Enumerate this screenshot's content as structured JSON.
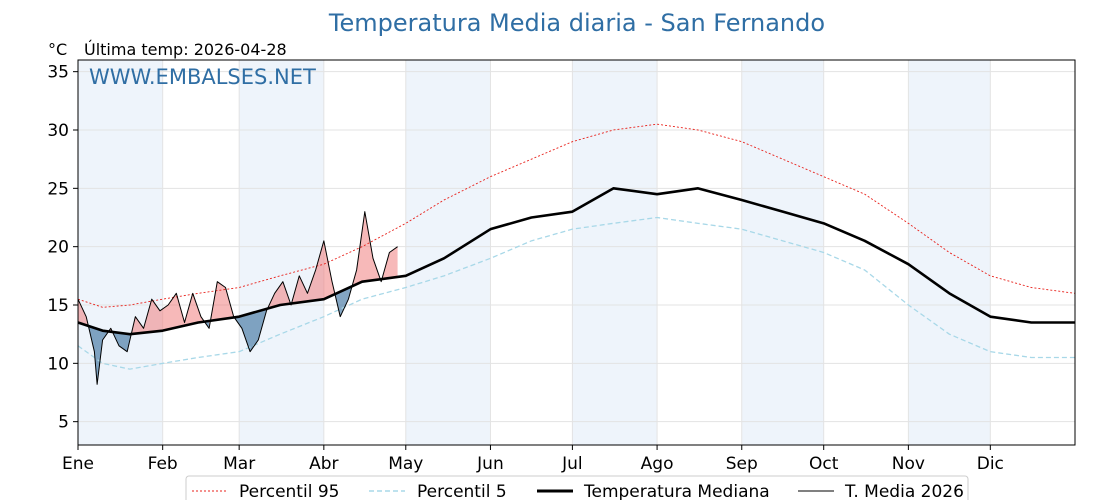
{
  "chart_data": {
    "type": "line",
    "title": "Temperatura Media diaria - San Fernando",
    "unit_label": "°C",
    "last_temp_label": "Última temp: 2026-04-28",
    "watermark": "WWW.EMBALSES.NET",
    "ylim": [
      3,
      36
    ],
    "y_ticks": [
      5,
      10,
      15,
      20,
      25,
      30,
      35
    ],
    "x_range_days": [
      1,
      366
    ],
    "months": [
      {
        "label": "Ene",
        "day": 1
      },
      {
        "label": "Feb",
        "day": 32
      },
      {
        "label": "Mar",
        "day": 60
      },
      {
        "label": "Abr",
        "day": 91
      },
      {
        "label": "May",
        "day": 121
      },
      {
        "label": "Jun",
        "day": 152
      },
      {
        "label": "Jul",
        "day": 182
      },
      {
        "label": "Ago",
        "day": 213
      },
      {
        "label": "Sep",
        "day": 244
      },
      {
        "label": "Oct",
        "day": 274
      },
      {
        "label": "Nov",
        "day": 305
      },
      {
        "label": "Dic",
        "day": 335
      }
    ],
    "grid": true,
    "legend_position": "bottom",
    "colors": {
      "p95": "#e8211b",
      "p5": "#a8d8e8",
      "median": "#000000",
      "current": "#000000",
      "above_fill": "#f08080",
      "below_fill": "#4f7fa8",
      "title": "#2f6ea4",
      "band_shade": "#eef4fb"
    },
    "series": [
      {
        "key": "p95",
        "name": "Percentil 95",
        "x": [
          1,
          10,
          20,
          32,
          45,
          60,
          75,
          91,
          105,
          121,
          135,
          152,
          167,
          182,
          197,
          213,
          228,
          244,
          259,
          274,
          289,
          305,
          320,
          335,
          350,
          366
        ],
        "y": [
          15.5,
          14.8,
          15.0,
          15.5,
          16.0,
          16.5,
          17.5,
          18.5,
          20.0,
          22.0,
          24.0,
          26.0,
          27.5,
          29.0,
          30.0,
          30.5,
          30.0,
          29.0,
          27.5,
          26.0,
          24.5,
          22.0,
          19.5,
          17.5,
          16.5,
          16.0
        ]
      },
      {
        "key": "p5",
        "name": "Percentil 5",
        "x": [
          1,
          10,
          20,
          32,
          45,
          60,
          75,
          91,
          105,
          121,
          135,
          152,
          167,
          182,
          197,
          213,
          228,
          244,
          259,
          274,
          289,
          305,
          320,
          335,
          350,
          366
        ],
        "y": [
          11.5,
          10.0,
          9.5,
          10.0,
          10.5,
          11.0,
          12.5,
          14.0,
          15.5,
          16.5,
          17.5,
          19.0,
          20.5,
          21.5,
          22.0,
          22.5,
          22.0,
          21.5,
          20.5,
          19.5,
          18.0,
          15.0,
          12.5,
          11.0,
          10.5,
          10.5
        ]
      },
      {
        "key": "median",
        "name": "Temperatura Mediana",
        "x": [
          1,
          10,
          20,
          32,
          45,
          60,
          75,
          91,
          105,
          121,
          135,
          152,
          167,
          182,
          197,
          213,
          228,
          244,
          259,
          274,
          289,
          305,
          320,
          335,
          350,
          366
        ],
        "y": [
          13.5,
          12.8,
          12.5,
          12.8,
          13.5,
          14.0,
          15.0,
          15.5,
          17.0,
          17.5,
          19.0,
          21.5,
          22.5,
          23.0,
          25.0,
          24.5,
          25.0,
          24.0,
          23.0,
          22.0,
          20.5,
          18.5,
          16.0,
          14.0,
          13.5,
          13.5
        ]
      },
      {
        "key": "current",
        "name": "T. Media 2026",
        "x": [
          1,
          4,
          7,
          8,
          10,
          13,
          16,
          19,
          22,
          25,
          28,
          31,
          34,
          37,
          40,
          43,
          46,
          49,
          52,
          55,
          58,
          61,
          64,
          67,
          70,
          73,
          76,
          79,
          82,
          85,
          88,
          91,
          94,
          97,
          100,
          103,
          106,
          109,
          112,
          115,
          118
        ],
        "y": [
          15.5,
          14.0,
          11.0,
          8.2,
          12.0,
          13.0,
          11.5,
          11.0,
          14.0,
          13.0,
          15.5,
          14.5,
          15.0,
          16.0,
          13.5,
          16.0,
          14.0,
          13.0,
          17.0,
          16.5,
          14.0,
          13.0,
          11.0,
          12.0,
          14.5,
          16.0,
          17.0,
          15.0,
          17.5,
          16.0,
          18.0,
          20.5,
          17.0,
          14.0,
          15.5,
          18.0,
          23.0,
          19.0,
          17.0,
          19.5,
          20.0
        ]
      }
    ]
  }
}
